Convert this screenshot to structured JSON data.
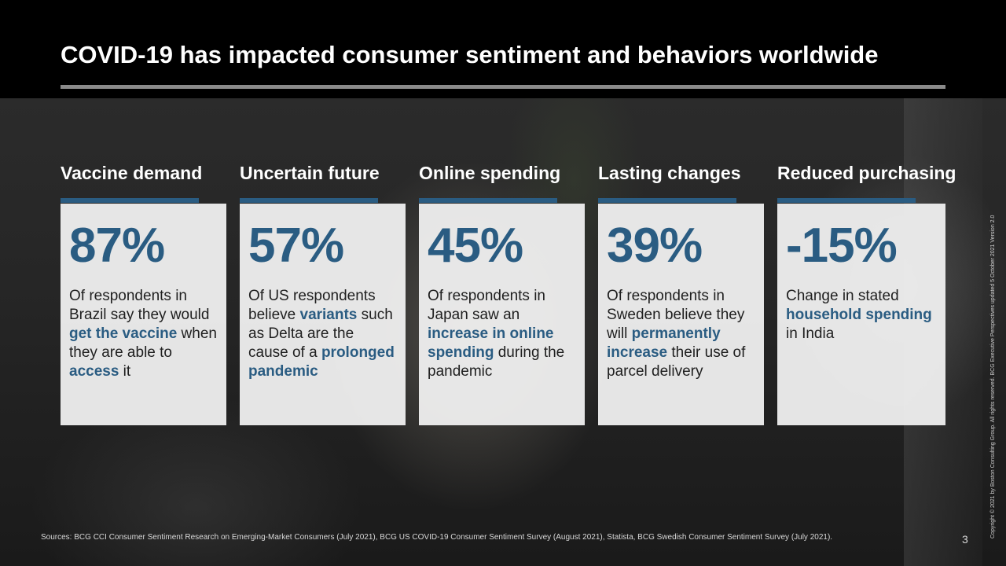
{
  "title": "COVID-19 has impacted consumer sentiment and behaviors worldwide",
  "colors": {
    "accent": "#2a5c82",
    "header_bg": "#000000",
    "card_bg": "#f0f0f0"
  },
  "cards": [
    {
      "heading": "Vaccine demand",
      "stat": "87%",
      "desc": [
        {
          "t": "Of respondents in Brazil say they would ",
          "hl": false
        },
        {
          "t": "get the vaccine",
          "hl": true
        },
        {
          "t": " when they are able to ",
          "hl": false
        },
        {
          "t": "access",
          "hl": true
        },
        {
          "t": " it",
          "hl": false
        }
      ]
    },
    {
      "heading": "Uncertain future",
      "stat": "57%",
      "desc": [
        {
          "t": "Of US respondents believe ",
          "hl": false
        },
        {
          "t": "variants",
          "hl": true
        },
        {
          "t": " such as Delta are the cause of a ",
          "hl": false
        },
        {
          "t": "prolonged pandemic",
          "hl": true
        }
      ]
    },
    {
      "heading": "Online spending",
      "stat": "45%",
      "desc": [
        {
          "t": "Of respondents in Japan saw an ",
          "hl": false
        },
        {
          "t": "increase in online spending",
          "hl": true
        },
        {
          "t": " during the pandemic",
          "hl": false
        }
      ]
    },
    {
      "heading": "Lasting changes",
      "stat": "39%",
      "desc": [
        {
          "t": "Of respondents in Sweden believe they will ",
          "hl": false
        },
        {
          "t": "permanently increase",
          "hl": true
        },
        {
          "t": " their use of parcel delivery",
          "hl": false
        }
      ]
    },
    {
      "heading": "Reduced purchasing",
      "stat": "-15%",
      "desc": [
        {
          "t": "Change in stated ",
          "hl": false
        },
        {
          "t": "household spending",
          "hl": true
        },
        {
          "t": " in India",
          "hl": false
        }
      ]
    }
  ],
  "sources": "Sources: BCG CCI Consumer Sentiment Research on Emerging-Market Consumers (July 2021), BCG US COVID-19 Consumer Sentiment Survey (August 2021), Statista, BCG Swedish Consumer Sentiment Survey (July 2021).",
  "page_number": "3",
  "copyright": "Copyright © 2021 by Boston Consulting Group. All rights reserved. BCG Executive Perspectives updated 5 October 2021 Version 2.0"
}
